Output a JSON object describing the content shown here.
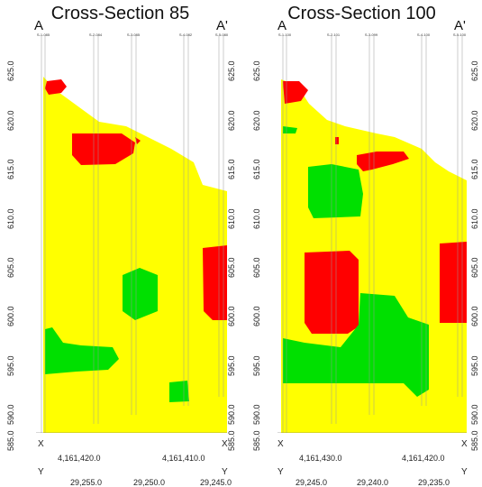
{
  "colors": {
    "yellow": "#ffff00",
    "red": "#ff0000",
    "green": "#00e000",
    "background": "#ffffff"
  },
  "sections": [
    {
      "title": "Cross-Section 85",
      "end_left": "A",
      "end_right": "A'",
      "boreholes": [
        "S-1-085",
        "S-2-084",
        "S-3-085",
        "S-4-082",
        "S-5-080"
      ],
      "elevation_labels_left": [
        "625.0",
        "620.0",
        "615.0",
        "610.0",
        "605.0",
        "600.0",
        "595.0",
        "590.0",
        "585.0"
      ],
      "elevation_labels_right": [
        "625.0",
        "620.0",
        "615.0",
        "610.0",
        "605.0",
        "600.0",
        "595.0",
        "590.0",
        "585.0"
      ],
      "x_axis_letter": "X",
      "x_coords": [
        "4,161,420.0",
        "4,161,410.0"
      ],
      "y_axis_letter": "Y",
      "y_coords": [
        "29,255.0",
        "29,250.0",
        "29,245.0"
      ]
    },
    {
      "title": "Cross-Section 100",
      "end_left": "A",
      "end_right": "A'",
      "boreholes": [
        "S-1-100",
        "S-2-101",
        "S-3-099",
        "S-4-100",
        "S-5-100"
      ],
      "elevation_labels_left": [
        "625.0",
        "620.0",
        "615.0",
        "610.0",
        "605.0",
        "600.0",
        "595.0",
        "590.0",
        "585.0"
      ],
      "elevation_labels_right": [
        "625.0",
        "620.0",
        "615.0",
        "610.0",
        "605.0",
        "600.0",
        "595.0",
        "590.0",
        "585.0"
      ],
      "x_axis_letter": "X",
      "x_coords": [
        "4,161,430.0",
        "4,161,420.0"
      ],
      "y_axis_letter": "Y",
      "y_coords": [
        "29,245.0",
        "29,240.0",
        "29,235.0"
      ]
    }
  ]
}
